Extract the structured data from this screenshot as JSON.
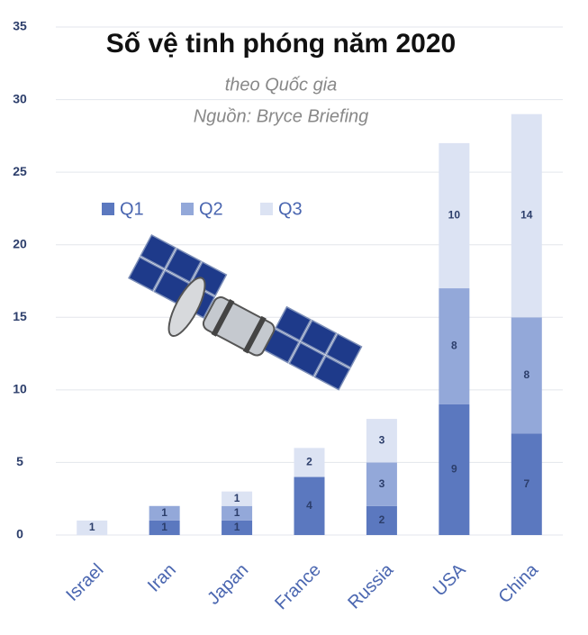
{
  "chart_data": {
    "type": "stacked-bar",
    "title": "Số vệ tinh phóng năm 2020",
    "subtitle": "theo Quốc gia",
    "source": "Nguồn: Bryce Briefing",
    "categories": [
      "Israel",
      "Iran",
      "Japan",
      "France",
      "Russia",
      "USA",
      "China"
    ],
    "series": [
      {
        "name": "Q1",
        "color": "#5b78bf",
        "values": [
          0,
          1,
          1,
          4,
          2,
          9,
          7
        ]
      },
      {
        "name": "Q2",
        "color": "#93a8d9",
        "values": [
          0,
          1,
          1,
          0,
          3,
          8,
          8
        ]
      },
      {
        "name": "Q3",
        "color": "#dce3f3",
        "values": [
          1,
          0,
          1,
          2,
          3,
          10,
          14
        ]
      }
    ],
    "ylim": [
      0,
      35
    ],
    "yticks": [
      0,
      5,
      10,
      15,
      20,
      25,
      30,
      35
    ],
    "grid": true,
    "legend": "upper left"
  }
}
